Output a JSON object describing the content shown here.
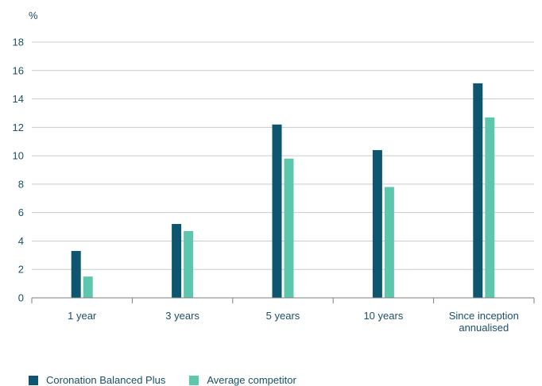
{
  "chart_data": {
    "type": "bar",
    "unit_label": "%",
    "categories": [
      [
        "1 year"
      ],
      [
        "3 years"
      ],
      [
        "5 years"
      ],
      [
        "10 years"
      ],
      [
        "Since inception",
        "annualised"
      ]
    ],
    "series": [
      {
        "name": "Coronation Balanced Plus",
        "color": "#0e5570",
        "values": [
          3.3,
          5.2,
          12.2,
          10.4,
          15.1
        ]
      },
      {
        "name": "Average competitor",
        "color": "#5ec6ac",
        "values": [
          1.5,
          4.7,
          9.8,
          7.8,
          12.7
        ]
      }
    ],
    "y_ticks": [
      0,
      2,
      4,
      6,
      8,
      10,
      12,
      14,
      16,
      18
    ],
    "ylim": [
      0,
      18
    ],
    "grid": true,
    "legend_position": "bottom-left"
  }
}
